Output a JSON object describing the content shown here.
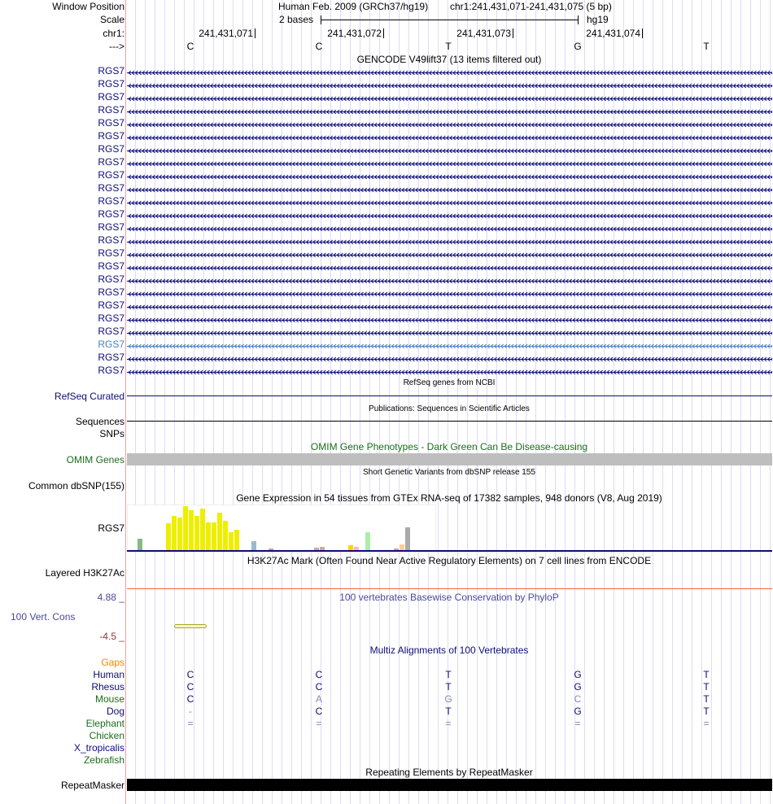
{
  "header": {
    "window_position_label": "Window Position",
    "assembly": "Human Feb. 2009 (GRCh37/hg19)",
    "position": "chr1:241,431,071-241,431,075 (5 bp)",
    "scale_label": "Scale",
    "scale_text": "2 bases",
    "scale_db": "hg19",
    "chrom_label": "chr1:",
    "strand_label": "--->",
    "coords": [
      "241,431,071",
      "241,431,072",
      "241,431,073",
      "241,431,074"
    ],
    "bases": [
      "C",
      "C",
      "T",
      "G",
      "T"
    ]
  },
  "gencode": {
    "title": "GENCODE V49lift37 (13 items filtered out)",
    "rows": [
      "RGS7",
      "RGS7",
      "RGS7",
      "RGS7",
      "RGS7",
      "RGS7",
      "RGS7",
      "RGS7",
      "RGS7",
      "RGS7",
      "RGS7",
      "RGS7",
      "RGS7",
      "RGS7",
      "RGS7",
      "RGS7",
      "RGS7",
      "RGS7",
      "RGS7",
      "RGS7",
      "RGS7",
      "RGS7",
      "RGS7",
      "RGS7"
    ],
    "highlight_row": 22,
    "color": "#0d0d7a",
    "highlight_color": "#4a80c4"
  },
  "refseq": {
    "title": "RefSeq genes from NCBI",
    "label": "RefSeq Curated"
  },
  "pubs": {
    "title": "Publications: Sequences in Scientific Articles",
    "label1": "Sequences",
    "label2": "SNPs"
  },
  "omim": {
    "title": "OMIM Gene Phenotypes - Dark Green Can Be Disease-causing",
    "label": "OMIM Genes"
  },
  "dbsnp": {
    "title": "Short Genetic Variants from dbSNP release 155",
    "label": "Common dbSNP(155)"
  },
  "gtex": {
    "title": "Gene Expression in 54 tissues from GTEx RNA-seq of 17382 samples, 948 donors (V8, Aug 2019)",
    "label": "RGS7",
    "values": [
      27,
      0,
      0,
      0,
      0,
      62,
      78,
      75,
      100,
      90,
      78,
      95,
      64,
      64,
      86,
      67,
      42,
      47,
      0,
      0,
      22,
      0,
      2,
      5,
      2,
      2,
      0,
      2,
      0,
      0,
      0,
      7,
      9,
      0,
      0,
      0,
      0,
      13,
      9,
      2,
      41,
      1,
      0,
      0,
      2,
      5,
      15,
      53,
      0,
      2,
      0,
      0,
      0,
      0
    ],
    "colors": [
      "#88b888",
      "#fff",
      "#fff",
      "#fff",
      "#fff",
      "#eeee00",
      "#eeee00",
      "#eeee00",
      "#eeee00",
      "#eeee00",
      "#eeee00",
      "#eeee00",
      "#eeee00",
      "#eeee00",
      "#eeee00",
      "#eeee00",
      "#eeee00",
      "#eeee00",
      "#fff",
      "#fff",
      "#99bbcc",
      "#fff",
      "#eed5c0",
      "#c8a890",
      "#f0c8a0",
      "#a88870",
      "#fff",
      "#d8b080",
      "#fff",
      "#fff",
      "#fff",
      "#ccac9c",
      "#ccac9c",
      "#fff",
      "#fff",
      "#fff",
      "#fff",
      "#ffd700",
      "#ffb6c1",
      "#dd9922",
      "#aaeeaa",
      "#dddddd",
      "#fff",
      "#fff",
      "#ccaa99",
      "#ccaa99",
      "#ffcc99",
      "#aaaaaa",
      "#fff",
      "#eecccc",
      "#fff",
      "#fff",
      "#fff",
      "#fff"
    ]
  },
  "h3k27ac": {
    "title": "H3K27Ac Mark (Often Found Near Active Regulatory Elements) on 7 cell lines from ENCODE",
    "label": "Layered H3K27Ac"
  },
  "phylop": {
    "title": "100 vertebrates Basewise Conservation by PhyloP",
    "label": "100 Vert. Cons",
    "max": "4.88 _",
    "min": "-4.5 _"
  },
  "multiz": {
    "title": "Multiz Alignments of 100 Vertebrates",
    "gaps_label": "Gaps",
    "species": [
      {
        "name": "Human",
        "color": "#0d0d7a",
        "bases": [
          "C",
          "C",
          "T",
          "G",
          "T"
        ]
      },
      {
        "name": "Rhesus",
        "color": "#0d0d7a",
        "bases": [
          "C",
          "C",
          "T",
          "G",
          "T"
        ]
      },
      {
        "name": "Mouse",
        "color": "#1a6e1a",
        "bases": [
          "C",
          "A",
          "G",
          "C",
          "T"
        ]
      },
      {
        "name": "Dog",
        "color": "#0d0d7a",
        "bases": [
          "-",
          "C",
          "T",
          "G",
          "T"
        ]
      },
      {
        "name": "Elephant",
        "color": "#1a6e1a",
        "bases": [
          "=",
          "=",
          "=",
          "=",
          "="
        ]
      },
      {
        "name": "Chicken",
        "color": "#1a6e1a",
        "bases": [
          "",
          "",
          "",
          "",
          ""
        ]
      },
      {
        "name": "X_tropicalis",
        "color": "#0d0d7a",
        "bases": [
          "",
          "",
          "",
          "",
          ""
        ]
      },
      {
        "name": "Zebrafish",
        "color": "#1a6e1a",
        "bases": [
          "",
          "",
          "",
          "",
          ""
        ]
      }
    ]
  },
  "repeatmasker": {
    "title": "Repeating Elements by RepeatMasker",
    "label": "RepeatMasker"
  }
}
